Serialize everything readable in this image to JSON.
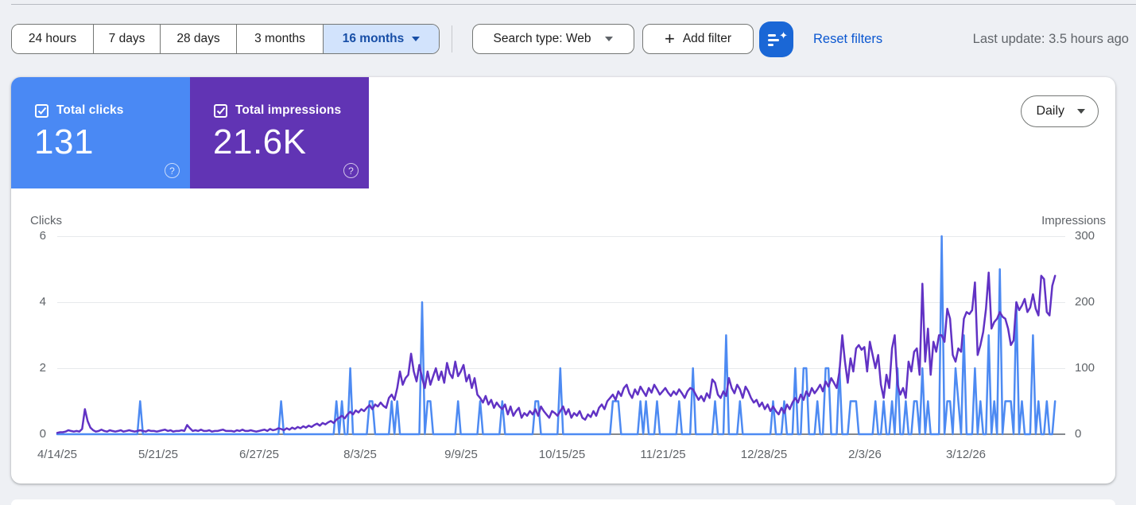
{
  "toolbar": {
    "date_ranges": [
      "24 hours",
      "7 days",
      "28 days",
      "3 months",
      "16 months"
    ],
    "selected_range": "16 months",
    "search_type_label": "Search type: Web",
    "add_filter_label": "Add filter",
    "reset_filters_label": "Reset filters",
    "last_update": "Last update: 3.5 hours ago"
  },
  "metrics": {
    "clicks": {
      "label": "Total clicks",
      "value": "131",
      "checked": true,
      "color": "#4a89f4"
    },
    "impressions": {
      "label": "Total impressions",
      "value": "21.6K",
      "checked": true,
      "color": "#6134b4"
    }
  },
  "controls": {
    "granularity": "Daily"
  },
  "chart_data": {
    "type": "line",
    "x_tick_labels": [
      "4/14/25",
      "5/21/25",
      "6/27/25",
      "8/3/25",
      "9/9/25",
      "10/15/25",
      "11/21/25",
      "12/28/25",
      "2/3/26",
      "3/12/26"
    ],
    "left_axis": {
      "label": "Clicks",
      "ticks": [
        0,
        2,
        4,
        6
      ],
      "max": 6
    },
    "right_axis": {
      "label": "Impressions",
      "ticks": [
        0,
        100,
        200,
        300
      ],
      "max": 300
    },
    "series": [
      {
        "name": "Clicks",
        "axis": "left",
        "color": "#4d8af2",
        "format": "sparse",
        "length": 362,
        "base": 0,
        "spikes": {
          "30": 1,
          "81": 1,
          "101": 1,
          "103": 1,
          "106": 2,
          "113": 1,
          "114": 1,
          "121": 1,
          "123": 1,
          "132": 4,
          "134": 1,
          "135": 1,
          "145": 1,
          "153": 1,
          "161": 1,
          "173": 1,
          "174": 1,
          "182": 2,
          "201": 1,
          "202": 1,
          "203": 1,
          "211": 1,
          "213": 1,
          "217": 1,
          "225": 1,
          "230": 2,
          "238": 1,
          "242": 3,
          "247": 1,
          "259": 1,
          "263": 1,
          "267": 2,
          "270": 2,
          "271": 2,
          "275": 1,
          "278": 2,
          "279": 2,
          "283": 2,
          "287": 1,
          "288": 1,
          "289": 1,
          "296": 1,
          "299": 1,
          "302": 1,
          "304": 2,
          "307": 1,
          "310": 1,
          "311": 1,
          "313": 2,
          "315": 1,
          "320": 6,
          "322": 1,
          "323": 1,
          "325": 2,
          "326": 1,
          "328": 3,
          "332": 2,
          "334": 1,
          "337": 3,
          "339": 1,
          "341": 5,
          "343": 1,
          "344": 1,
          "345": 1,
          "347": 4,
          "349": 1,
          "353": 3,
          "355": 1,
          "358": 1,
          "361": 1
        }
      },
      {
        "name": "Impressions",
        "axis": "right",
        "color": "#6132c4",
        "format": "full",
        "values": [
          2,
          3,
          3,
          4,
          6,
          5,
          4,
          5,
          4,
          8,
          38,
          20,
          10,
          6,
          4,
          5,
          7,
          5,
          4,
          6,
          5,
          4,
          5,
          6,
          4,
          5,
          6,
          5,
          4,
          5,
          6,
          5,
          4,
          6,
          5,
          5,
          4,
          5,
          6,
          7,
          5,
          6,
          4,
          5,
          5,
          6,
          5,
          14,
          9,
          5,
          6,
          5,
          7,
          5,
          5,
          6,
          4,
          5,
          5,
          6,
          7,
          5,
          5,
          5,
          4,
          6,
          5,
          7,
          5,
          5,
          6,
          5,
          4,
          5,
          6,
          7,
          5,
          8,
          6,
          7,
          9,
          8,
          6,
          9,
          7,
          10,
          8,
          11,
          9,
          12,
          10,
          13,
          11,
          14,
          16,
          13,
          17,
          15,
          18,
          20,
          17,
          22,
          25,
          28,
          24,
          30,
          34,
          30,
          36,
          33,
          38,
          35,
          40,
          44,
          38,
          45,
          42,
          48,
          43,
          40,
          55,
          60,
          52,
          70,
          95,
          75,
          85,
          90,
          122,
          95,
          80,
          105,
          85,
          70,
          95,
          75,
          88,
          100,
          82,
          95,
          78,
          108,
          92,
          85,
          110,
          88,
          95,
          105,
          80,
          90,
          70,
          85,
          60,
          55,
          48,
          58,
          45,
          52,
          40,
          48,
          42,
          38,
          45,
          30,
          42,
          28,
          35,
          40,
          25,
          32,
          28,
          35,
          30,
          38,
          28,
          42,
          35,
          30,
          25,
          35,
          32,
          28,
          35,
          42,
          30,
          38,
          25,
          32,
          28,
          35,
          25,
          22,
          30,
          26,
          35,
          28,
          40,
          45,
          38,
          50,
          55,
          60,
          52,
          65,
          58,
          70,
          75,
          62,
          55,
          68,
          60,
          72,
          65,
          58,
          70,
          63,
          75,
          68,
          60,
          65,
          70,
          63,
          58,
          65,
          60,
          68,
          62,
          55,
          65,
          70,
          68,
          60,
          52,
          58,
          50,
          62,
          55,
          83,
          78,
          60,
          55,
          65,
          58,
          85,
          70,
          62,
          75,
          68,
          55,
          72,
          65,
          55,
          48,
          52,
          42,
          48,
          38,
          45,
          35,
          42,
          35,
          30,
          40,
          32,
          45,
          38,
          48,
          55,
          48,
          60,
          52,
          65,
          58,
          70,
          62,
          68,
          75,
          65,
          80,
          72,
          85,
          78,
          70,
          95,
          150,
          110,
          78,
          115,
          95,
          130,
          135,
          128,
          132,
          95,
          140,
          120,
          100,
          120,
          75,
          55,
          90,
          70,
          130,
          150,
          75,
          60,
          70,
          55,
          110,
          95,
          125,
          130,
          90,
          228,
          110,
          160,
          90,
          140,
          125,
          150,
          150,
          140,
          190,
          175,
          120,
          110,
          130,
          125,
          175,
          185,
          182,
          188,
          230,
          120,
          135,
          155,
          190,
          245,
          160,
          170,
          175,
          185,
          178,
          175,
          160,
          135,
          142,
          200,
          188,
          195,
          205,
          185,
          192,
          212,
          190,
          180,
          240,
          235,
          185,
          180,
          225,
          240
        ]
      }
    ]
  }
}
